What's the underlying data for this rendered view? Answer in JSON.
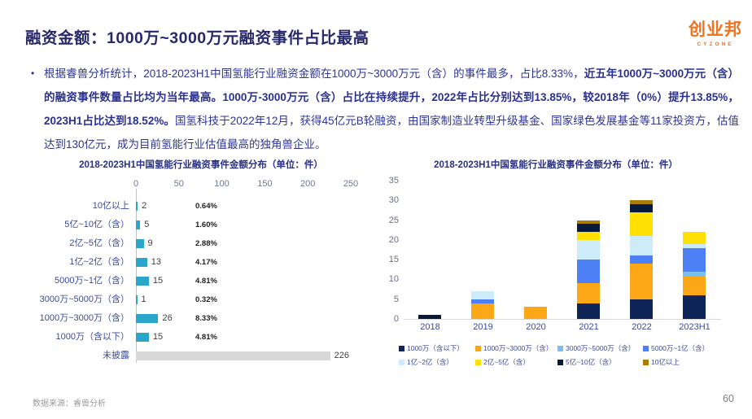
{
  "slide": {
    "title": "融资金额：1000万~3000万元融资事件占比最高",
    "logo": {
      "name": "创业邦",
      "sub": "CYZONE"
    },
    "bullet": {
      "marker": "•",
      "seg1": "根据睿兽分析统计，2018-2023H1中国氢能行业融资金额在1000万~3000万元（含）的事件最多，占比8.33%，",
      "seg2": "近五年1000万~3000万元（含）的融资事件数量占比均为当年最高。1000万-3000万元（含）占比在持续提升，2022年占比分别达到13.85%，较2018年（0%）提升13.85%，2023H1占比达到18.52%。",
      "seg3": "国氢科技于2022年12月，获得45亿元B轮融资，由国家制造业转型升级基金、国家绿色发展基金等11家投资方，估值达到130亿元，成为目前氢能行业估值最高的独角兽企业。"
    },
    "footer": {
      "source": "数据来源：睿兽分析",
      "page": "60"
    }
  },
  "chart_data": [
    {
      "type": "bar",
      "orientation": "horizontal",
      "title": "2018-2023H1中国氢能行业融资事件金额分布（单位：件）",
      "xlabel": "",
      "ylabel": "",
      "xlim": [
        0,
        250
      ],
      "x_ticks": [
        0,
        50,
        100,
        150,
        200,
        250
      ],
      "bar_color": "#2AA6CB",
      "rows": [
        {
          "label": "10亿以上",
          "value": 2,
          "pct": "0.64%"
        },
        {
          "label": "5亿~10亿（含）",
          "value": 5,
          "pct": "1.60%"
        },
        {
          "label": "2亿~5亿（含）",
          "value": 9,
          "pct": "2.88%"
        },
        {
          "label": "1亿~2亿（含）",
          "value": 13,
          "pct": "4.17%"
        },
        {
          "label": "5000万~1亿（含）",
          "value": 15,
          "pct": "4.81%"
        },
        {
          "label": "3000万~5000万（含）",
          "value": 1,
          "pct": "0.32%"
        },
        {
          "label": "1000万~3000万（含）",
          "value": 26,
          "pct": "8.33%"
        },
        {
          "label": "1000万（含以下）",
          "value": 15,
          "pct": "4.81%"
        },
        {
          "label": "未披露",
          "value": 226,
          "pct": null,
          "color": "#D8D8D8"
        }
      ]
    },
    {
      "type": "bar",
      "stacked": true,
      "title": "2018-2023H1中国氢能行业融资事件金额分布（单位：件）",
      "categories": [
        "2018",
        "2019",
        "2020",
        "2021",
        "2022",
        "2023H1"
      ],
      "ylim": [
        0,
        35
      ],
      "y_ticks": [
        0,
        5,
        10,
        15,
        20,
        25,
        30,
        35
      ],
      "legend_position": "bottom",
      "series": [
        {
          "name": "1000万（含以下）",
          "color": "#0F2557",
          "values": [
            0,
            0,
            0,
            4,
            5,
            6
          ]
        },
        {
          "name": "1000万~3000万（含）",
          "color": "#FBA716",
          "values": [
            0,
            4,
            3,
            5,
            9,
            5
          ]
        },
        {
          "name": "3000万~5000万（含）",
          "color": "#79BFF0",
          "values": [
            0,
            0,
            0,
            0,
            0,
            1
          ]
        },
        {
          "name": "5000万~1亿（含）",
          "color": "#4E80F5",
          "values": [
            0,
            1,
            0,
            6,
            2,
            6
          ]
        },
        {
          "name": "1亿~2亿（含）",
          "color": "#CDEBF8",
          "values": [
            0,
            2,
            0,
            5,
            5,
            1
          ]
        },
        {
          "name": "2亿~5亿（含）",
          "color": "#FFE005",
          "values": [
            0,
            0,
            0,
            2,
            6,
            3
          ]
        },
        {
          "name": "5亿~10亿（含）",
          "color": "#061A3C",
          "values": [
            1,
            0,
            0,
            2,
            2,
            0
          ]
        },
        {
          "name": "10亿以上",
          "color": "#A97C08",
          "values": [
            0,
            0,
            0,
            1,
            1,
            0
          ]
        }
      ]
    }
  ]
}
